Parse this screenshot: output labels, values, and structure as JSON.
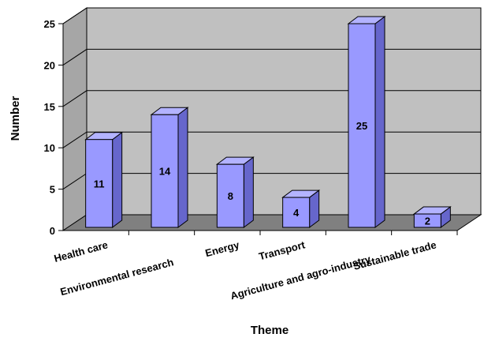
{
  "chart_data": {
    "type": "bar",
    "title": "",
    "xlabel": "Theme",
    "ylabel": "Number",
    "categories": [
      "Health care",
      "Environmental research",
      "Energy",
      "Transport",
      "Agriculture and agro-industry",
      "Sustainable trade"
    ],
    "values": [
      11,
      14,
      8,
      4,
      25,
      2
    ],
    "ylim": [
      0,
      25
    ],
    "yticks": [
      0,
      5,
      10,
      15,
      20,
      25
    ],
    "grid": true,
    "legend": "none",
    "colors": {
      "bar_front": "#9999ff",
      "bar_side": "#6666cc",
      "bar_top": "#b3b3ff",
      "wall": "#c0c0c0",
      "floor": "#808080"
    }
  }
}
